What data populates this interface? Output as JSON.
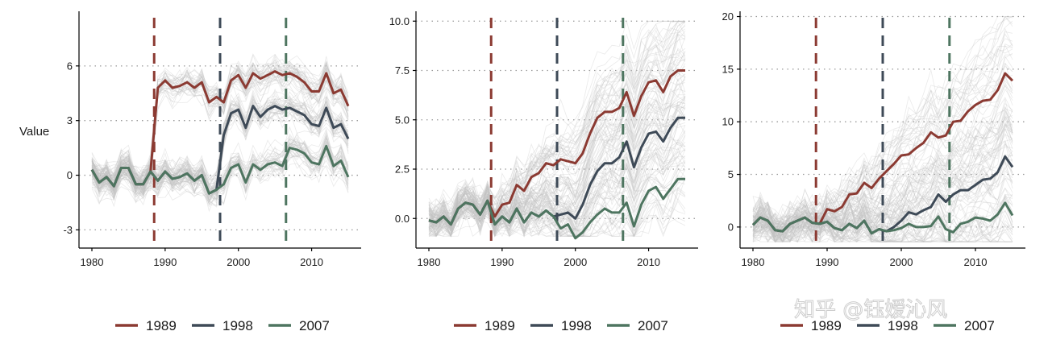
{
  "chart_data": [
    {
      "type": "line",
      "panel": "left",
      "ylabel": "Value",
      "xlim": [
        1980,
        2015
      ],
      "ylim": [
        -4,
        9
      ],
      "x_ticks": [
        "1980",
        "1990",
        "2000",
        "2010"
      ],
      "y_ticks": [
        "-3",
        "0",
        "3",
        "6"
      ],
      "y_tick_values": [
        -3,
        0,
        3,
        6
      ],
      "treatment_years": [
        1989,
        1998,
        2007
      ],
      "background_band": {
        "description_count": 400,
        "pre_mean": 0,
        "post1_mean": 4.6,
        "post2_mean": 3.2,
        "post3_mean": 1.0
      },
      "x": [
        1980,
        1981,
        1982,
        1983,
        1984,
        1985,
        1986,
        1987,
        1988,
        1989,
        1990,
        1991,
        1992,
        1993,
        1994,
        1995,
        1996,
        1997,
        1998,
        1999,
        2000,
        2001,
        2002,
        2003,
        2004,
        2005,
        2006,
        2007,
        2008,
        2009,
        2010,
        2011,
        2012,
        2013,
        2014,
        2015
      ],
      "series": [
        {
          "name": "1989",
          "color": "#8b3a32",
          "values": [
            0.3,
            -0.4,
            -0.1,
            -0.6,
            0.4,
            0.4,
            -0.5,
            -0.5,
            0.2,
            4.8,
            5.2,
            4.8,
            4.9,
            5.1,
            4.8,
            5.1,
            4.0,
            4.3,
            4.0,
            5.2,
            5.5,
            4.8,
            5.6,
            5.3,
            5.5,
            5.7,
            5.5,
            5.6,
            5.4,
            5.1,
            4.6,
            4.6,
            5.6,
            4.5,
            4.7,
            3.8
          ]
        },
        {
          "name": "1998",
          "color": "#3e4a57",
          "values": [
            0.3,
            -0.4,
            -0.1,
            -0.6,
            0.4,
            0.4,
            -0.5,
            -0.5,
            0.2,
            -0.3,
            0.2,
            -0.2,
            -0.1,
            0.1,
            -0.3,
            0.0,
            -1.0,
            -0.8,
            2.2,
            3.4,
            3.6,
            2.6,
            3.8,
            3.2,
            3.6,
            3.8,
            3.6,
            3.7,
            3.5,
            3.3,
            2.8,
            2.7,
            3.7,
            2.6,
            2.8,
            2.0
          ]
        },
        {
          "name": "2007",
          "color": "#4e7560",
          "values": [
            0.3,
            -0.4,
            -0.1,
            -0.6,
            0.4,
            0.4,
            -0.5,
            -0.5,
            0.2,
            -0.3,
            0.2,
            -0.2,
            -0.1,
            0.1,
            -0.3,
            0.0,
            -1.0,
            -0.8,
            -0.5,
            0.4,
            0.6,
            -0.4,
            0.6,
            0.3,
            0.6,
            0.7,
            0.5,
            1.5,
            1.4,
            1.2,
            0.7,
            0.6,
            1.6,
            0.5,
            0.8,
            -0.1
          ]
        }
      ]
    },
    {
      "type": "line",
      "panel": "middle",
      "xlim": [
        1980,
        2015
      ],
      "ylim": [
        -1.5,
        10.5
      ],
      "x_ticks": [
        "1980",
        "1990",
        "2000",
        "2010"
      ],
      "y_ticks": [
        "0.0",
        "2.5",
        "5.0",
        "7.5",
        "10.0"
      ],
      "y_tick_values": [
        0,
        2.5,
        5,
        7.5,
        10
      ],
      "treatment_years": [
        1989,
        1998,
        2007
      ],
      "x": [
        1980,
        1981,
        1982,
        1983,
        1984,
        1985,
        1986,
        1987,
        1988,
        1989,
        1990,
        1991,
        1992,
        1993,
        1994,
        1995,
        1996,
        1997,
        1998,
        1999,
        2000,
        2001,
        2002,
        2003,
        2004,
        2005,
        2006,
        2007,
        2008,
        2009,
        2010,
        2011,
        2012,
        2013,
        2014,
        2015
      ],
      "series": [
        {
          "name": "1989",
          "color": "#8b3a32",
          "values": [
            -0.1,
            -0.2,
            0.1,
            -0.3,
            0.5,
            0.8,
            0.7,
            0.2,
            0.9,
            0.1,
            0.7,
            0.8,
            1.7,
            1.4,
            2.1,
            2.3,
            2.8,
            2.7,
            3.0,
            2.9,
            2.8,
            3.3,
            4.3,
            5.1,
            5.4,
            5.4,
            5.6,
            6.4,
            5.2,
            6.2,
            6.9,
            7.0,
            6.4,
            7.2,
            7.5,
            7.5
          ]
        },
        {
          "name": "1998",
          "color": "#3e4a57",
          "values": [
            -0.1,
            -0.2,
            0.1,
            -0.3,
            0.5,
            0.8,
            0.7,
            0.2,
            0.9,
            -0.3,
            0.1,
            -0.2,
            0.5,
            -0.2,
            0.3,
            0.1,
            0.4,
            0.1,
            0.2,
            0.3,
            0.0,
            0.7,
            1.7,
            2.4,
            2.8,
            2.8,
            3.1,
            3.9,
            2.6,
            3.6,
            4.3,
            4.4,
            3.9,
            4.6,
            5.1,
            5.1
          ]
        },
        {
          "name": "2007",
          "color": "#4e7560",
          "values": [
            -0.1,
            -0.2,
            0.1,
            -0.3,
            0.5,
            0.8,
            0.7,
            0.2,
            0.9,
            -0.3,
            0.1,
            -0.2,
            0.5,
            -0.2,
            0.3,
            0.1,
            0.4,
            0.1,
            -0.5,
            -0.3,
            -1.0,
            -0.7,
            -0.2,
            0.2,
            0.5,
            0.3,
            0.3,
            0.8,
            -0.4,
            0.7,
            1.4,
            1.6,
            1.0,
            1.5,
            2.0,
            2.0
          ]
        }
      ]
    },
    {
      "type": "line",
      "panel": "right",
      "xlim": [
        1980,
        2015
      ],
      "ylim": [
        -2,
        20.5
      ],
      "x_ticks": [
        "1980",
        "1990",
        "2000",
        "2010"
      ],
      "y_ticks": [
        "0",
        "5",
        "10",
        "15",
        "20"
      ],
      "y_tick_values": [
        0,
        5,
        10,
        15,
        20
      ],
      "treatment_years": [
        1989,
        1998,
        2007
      ],
      "x": [
        1980,
        1981,
        1982,
        1983,
        1984,
        1985,
        1986,
        1987,
        1988,
        1989,
        1990,
        1991,
        1992,
        1993,
        1994,
        1995,
        1996,
        1997,
        1998,
        1999,
        2000,
        2001,
        2002,
        2003,
        2004,
        2005,
        2006,
        2007,
        2008,
        2009,
        2010,
        2011,
        2012,
        2013,
        2014,
        2015
      ],
      "series": [
        {
          "name": "1989",
          "color": "#8b3a32",
          "values": [
            0.2,
            0.9,
            0.6,
            -0.3,
            -0.4,
            0.3,
            0.6,
            0.9,
            0.4,
            0.3,
            1.7,
            1.5,
            1.9,
            3.1,
            3.2,
            4.2,
            3.7,
            4.6,
            5.3,
            6.0,
            6.8,
            6.9,
            7.5,
            8.0,
            9.0,
            8.5,
            8.7,
            10.0,
            10.1,
            11.0,
            11.6,
            12.0,
            12.1,
            13.0,
            14.6,
            13.9
          ]
        },
        {
          "name": "1998",
          "color": "#3e4a57",
          "values": [
            0.2,
            0.9,
            0.6,
            -0.3,
            -0.4,
            0.3,
            0.6,
            0.9,
            0.4,
            0.3,
            0.5,
            -0.1,
            -0.3,
            0.3,
            -0.1,
            0.6,
            -0.6,
            -0.2,
            -0.4,
            0.0,
            0.6,
            1.4,
            1.2,
            1.6,
            1.9,
            3.1,
            2.4,
            3.1,
            3.5,
            3.5,
            4.0,
            4.5,
            4.6,
            5.2,
            6.7,
            5.7
          ]
        },
        {
          "name": "2007",
          "color": "#4e7560",
          "values": [
            0.2,
            0.9,
            0.6,
            -0.3,
            -0.4,
            0.3,
            0.6,
            0.9,
            0.4,
            0.3,
            0.5,
            -0.1,
            -0.3,
            0.3,
            -0.1,
            0.6,
            -0.6,
            -0.2,
            -0.4,
            -0.3,
            -0.1,
            0.3,
            0.0,
            0.0,
            0.1,
            1.0,
            -0.2,
            -0.5,
            0.3,
            0.5,
            0.9,
            0.8,
            0.6,
            1.2,
            2.3,
            1.1
          ]
        }
      ]
    }
  ],
  "legend": {
    "entries": [
      {
        "label": "1989",
        "color": "#8b3a32"
      },
      {
        "label": "1998",
        "color": "#3e4a57"
      },
      {
        "label": "2007",
        "color": "#4e7560"
      }
    ]
  },
  "watermark": {
    "text": "知乎 @钰嫒沁风"
  }
}
